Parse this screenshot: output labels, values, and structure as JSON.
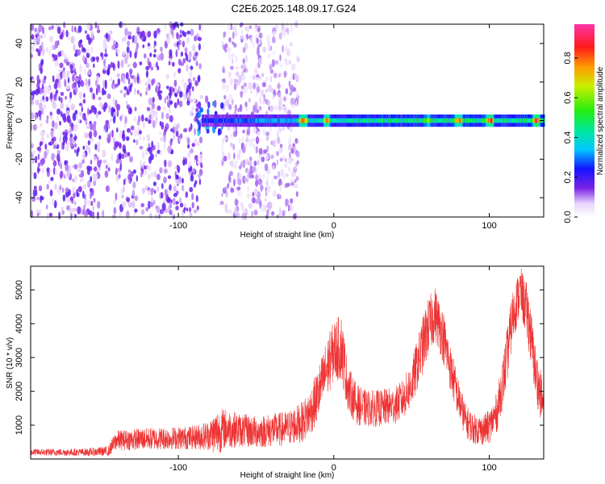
{
  "title": "C2E6.2025.148.09.17.G24",
  "chart_data": [
    {
      "type": "heatmap",
      "xlabel": "Height of straight line (km)",
      "ylabel": "Frequency (Hz)",
      "xlim": [
        -195,
        135
      ],
      "ylim": [
        -50,
        50
      ],
      "x_ticks": [
        -100,
        0,
        100
      ],
      "y_ticks": [
        -40,
        -20,
        0,
        20,
        40
      ],
      "colorbar": {
        "label": "Normalized spectral amplitude",
        "range": [
          0,
          0.97
        ],
        "ticks": [
          0,
          0.2,
          0.4,
          0.6,
          0.8
        ],
        "tick_labels": [
          "0.0",
          "0.2",
          "0.4",
          "0.6",
          "0.8"
        ]
      },
      "regions": [
        {
          "x_range": [
            -195,
            -85
          ],
          "freq_range": [
            -50,
            50
          ],
          "amplitude": 0.15,
          "pattern": "scattered noise"
        },
        {
          "x_range": [
            -72,
            -23
          ],
          "freq_range": [
            -50,
            50
          ],
          "amplitude": 0.1,
          "pattern": "scattered noise"
        },
        {
          "x_range": [
            -88,
            -70
          ],
          "freq_range": [
            -8,
            12
          ],
          "amplitude": 0.3,
          "pattern": "burst"
        },
        {
          "x_range": [
            -85,
            135
          ],
          "freq_range": [
            -3,
            3
          ],
          "amplitude": 0.5,
          "pattern": "band near 0 Hz"
        }
      ],
      "band_peaks": [
        {
          "x": -20,
          "amplitude": 0.9
        },
        {
          "x": -5,
          "amplitude": 0.85
        },
        {
          "x": 60,
          "amplitude": 0.7
        },
        {
          "x": 80,
          "amplitude": 0.9
        },
        {
          "x": 100,
          "amplitude": 0.95
        },
        {
          "x": 130,
          "amplitude": 0.95
        }
      ]
    },
    {
      "type": "line",
      "xlabel": "Height of straight line (km)",
      "ylabel": "SNR (10 * v/v)",
      "xlim": [
        -195,
        135
      ],
      "ylim": [
        0,
        5700
      ],
      "x_ticks": [
        -100,
        0,
        100
      ],
      "y_ticks": [
        1000,
        2000,
        3000,
        4000,
        5000
      ],
      "color": "#ee3333",
      "series": [
        {
          "x": [
            -195,
            -160,
            -145,
            -140,
            -120,
            -100,
            -90,
            -80,
            -75,
            -70,
            -60,
            -50,
            -40,
            -30,
            -20,
            -15,
            -10,
            -5,
            0,
            5,
            8,
            10,
            15,
            20,
            30,
            40,
            45,
            50,
            55,
            60,
            65,
            70,
            75,
            80,
            85,
            90,
            95,
            100,
            105,
            110,
            115,
            120,
            125,
            130,
            135
          ],
          "mean": [
            200,
            200,
            230,
            550,
            600,
            620,
            640,
            700,
            800,
            900,
            850,
            800,
            850,
            900,
            1100,
            1400,
            1900,
            2600,
            3200,
            3300,
            2400,
            2000,
            1600,
            1500,
            1500,
            1600,
            1800,
            2200,
            3000,
            3800,
            4300,
            3700,
            2700,
            1800,
            1100,
            900,
            850,
            950,
            1400,
            2600,
            4200,
            5000,
            4200,
            2500,
            1500
          ],
          "spread": [
            100,
            110,
            150,
            300,
            330,
            340,
            360,
            450,
            700,
            600,
            500,
            480,
            500,
            520,
            600,
            700,
            800,
            900,
            900,
            1000,
            800,
            700,
            600,
            550,
            550,
            550,
            600,
            700,
            800,
            900,
            800,
            800,
            700,
            600,
            500,
            450,
            450,
            500,
            600,
            800,
            800,
            700,
            900,
            800,
            700
          ]
        }
      ]
    }
  ]
}
